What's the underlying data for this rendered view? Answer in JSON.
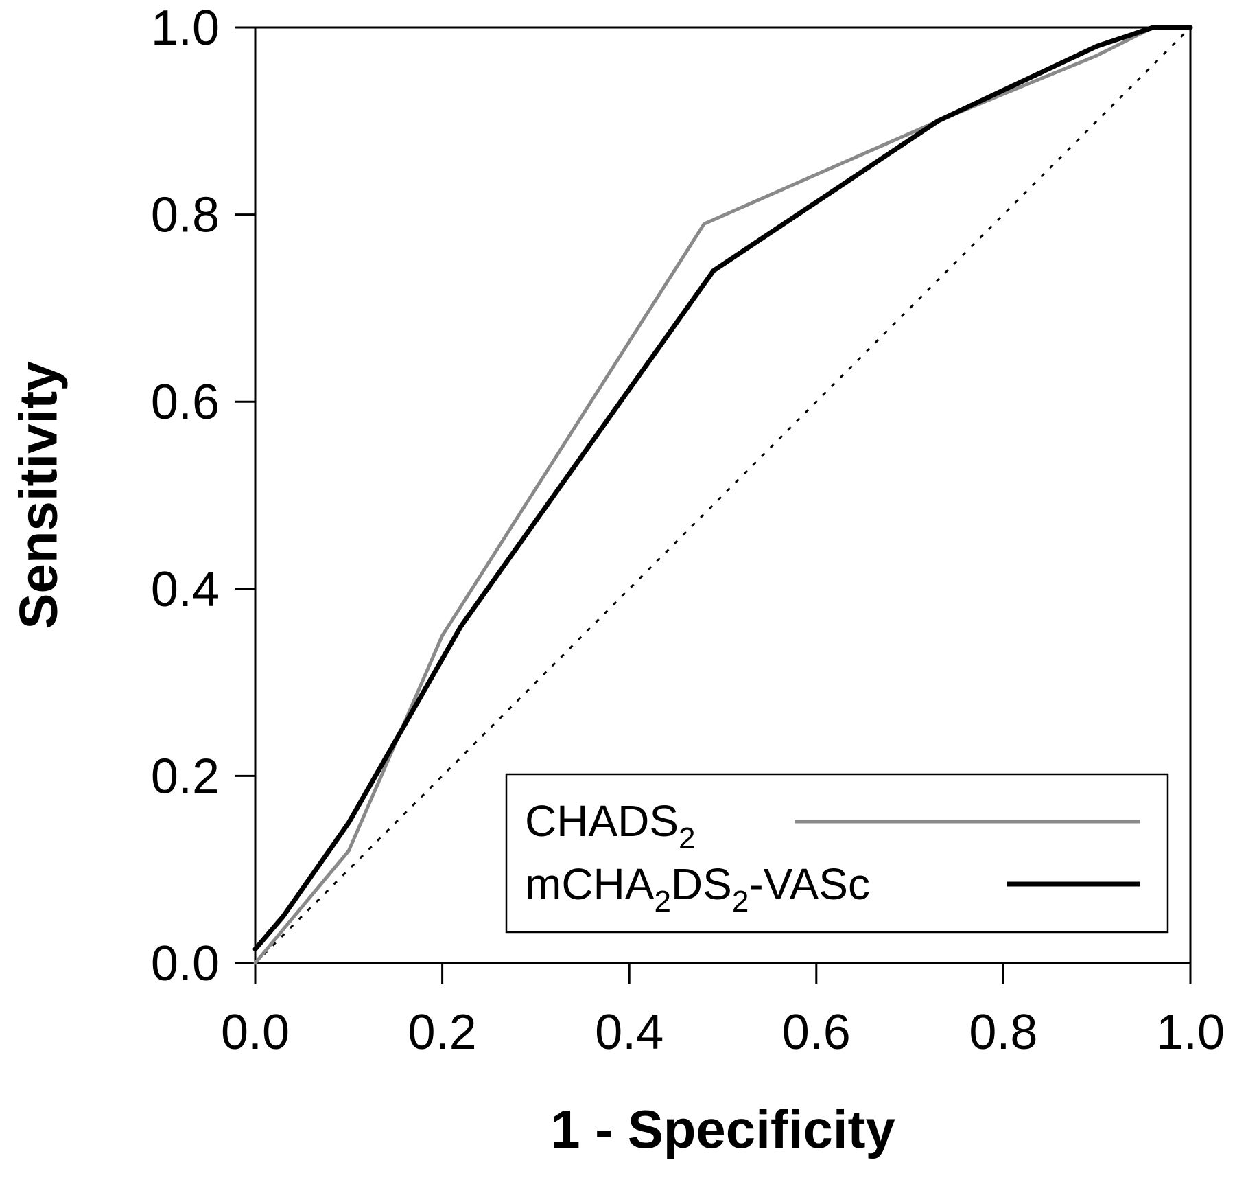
{
  "chart_data": {
    "type": "line",
    "title": "",
    "xlabel": "1 - Specificity",
    "ylabel": "Sensitivity",
    "xlim": [
      0,
      1
    ],
    "ylim": [
      0,
      1
    ],
    "xticks": [
      "0.0",
      "0.2",
      "0.4",
      "0.6",
      "0.8",
      "1.0"
    ],
    "yticks": [
      "0.0",
      "0.2",
      "0.4",
      "0.6",
      "0.8",
      "1.0"
    ],
    "grid": false,
    "legend_position": "bottom-right",
    "reference_line": {
      "style": "dotted",
      "from": [
        0,
        0
      ],
      "to": [
        1,
        1
      ]
    },
    "series": [
      {
        "name": "CHADS",
        "name_subscript": "2",
        "color": "#8a8a8a",
        "points": [
          [
            0.0,
            0.0
          ],
          [
            0.1,
            0.12
          ],
          [
            0.2,
            0.35
          ],
          [
            0.48,
            0.79
          ],
          [
            0.73,
            0.9
          ],
          [
            0.9,
            0.97
          ],
          [
            0.96,
            1.0
          ],
          [
            1.0,
            1.0
          ]
        ]
      },
      {
        "name": "mCHA2DS2-VASc",
        "name_parts": [
          {
            "text": "mCHA",
            "sub": false
          },
          {
            "text": "2",
            "sub": true
          },
          {
            "text": "DS",
            "sub": false
          },
          {
            "text": "2",
            "sub": true
          },
          {
            "text": "-VASc",
            "sub": false
          }
        ],
        "color": "#000000",
        "points": [
          [
            0.0,
            0.015
          ],
          [
            0.03,
            0.05
          ],
          [
            0.1,
            0.15
          ],
          [
            0.22,
            0.36
          ],
          [
            0.49,
            0.74
          ],
          [
            0.73,
            0.9
          ],
          [
            0.9,
            0.98
          ],
          [
            0.96,
            1.0
          ],
          [
            1.0,
            1.0
          ]
        ]
      }
    ]
  }
}
